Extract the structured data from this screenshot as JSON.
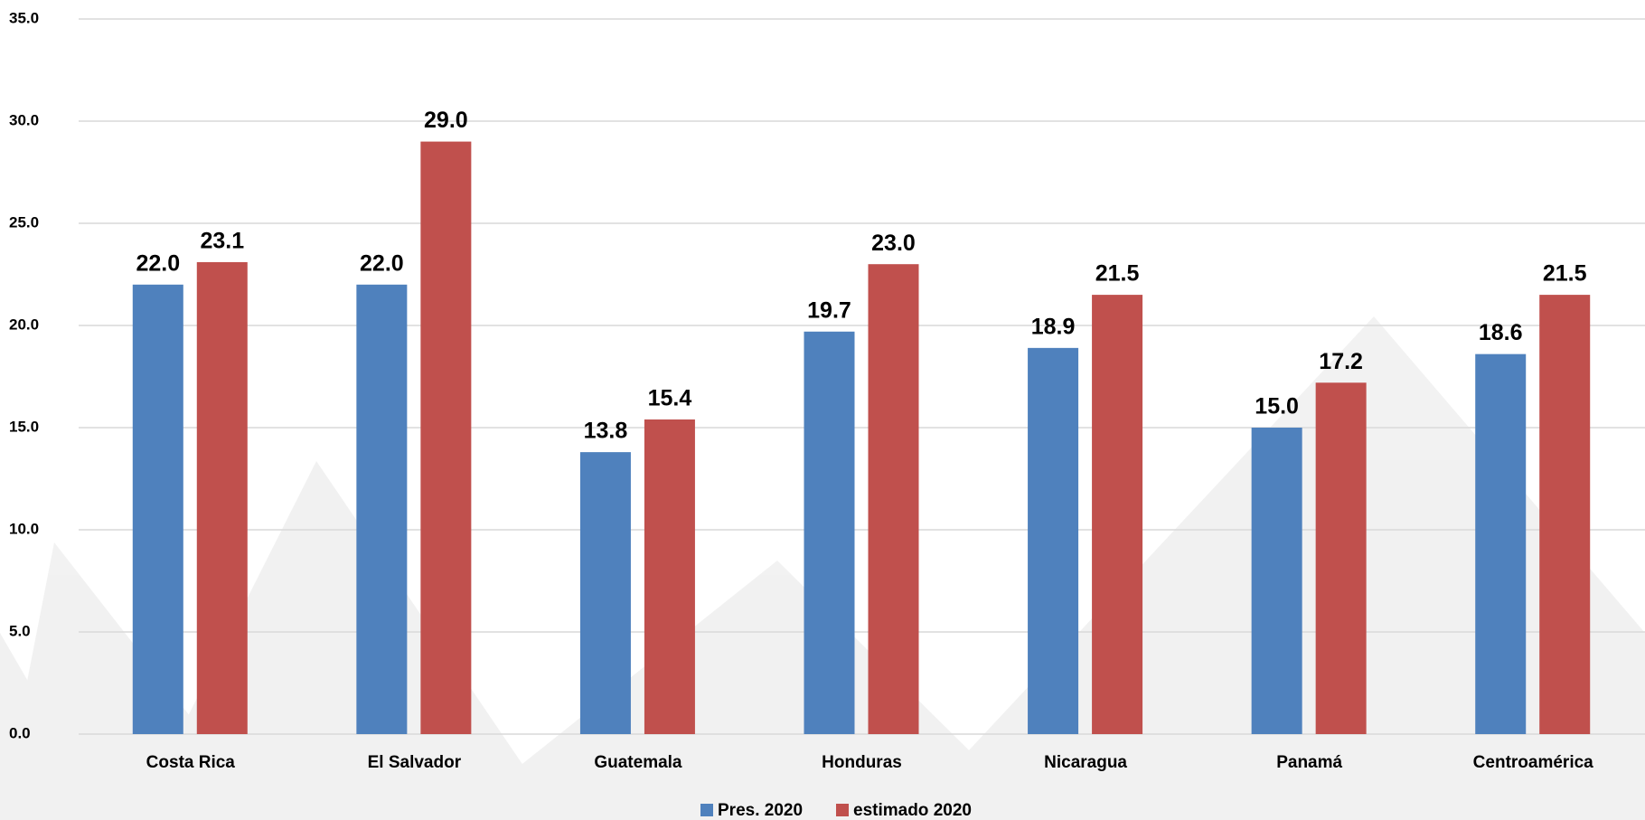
{
  "chart_data": {
    "type": "bar",
    "categories": [
      "Costa Rica",
      "El Salvador",
      "Guatemala",
      "Honduras",
      "Nicaragua",
      "Panamá",
      "Centroamérica"
    ],
    "series": [
      {
        "name": "Pres. 2020",
        "color": "#4f81bd",
        "values": [
          22.0,
          22.0,
          13.8,
          19.7,
          18.9,
          15.0,
          18.6
        ],
        "value_labels": [
          "22.0",
          "22.0",
          "13.8",
          "19.7",
          "18.9",
          "15.0",
          "18.6"
        ]
      },
      {
        "name": "estimado 2020",
        "color": "#c0504d",
        "values": [
          23.1,
          29.0,
          15.4,
          23.0,
          21.5,
          17.2,
          21.5
        ],
        "value_labels": [
          "23.1",
          "29.0",
          "15.4",
          "23.0",
          "21.5",
          "17.2",
          "21.5"
        ]
      }
    ],
    "ylim": [
      0,
      35
    ],
    "yticks": [
      {
        "value": 0,
        "label": "0.0"
      },
      {
        "value": 5,
        "label": "5.0"
      },
      {
        "value": 10,
        "label": "10.0"
      },
      {
        "value": 15,
        "label": "15.0"
      },
      {
        "value": 20,
        "label": "20.0"
      },
      {
        "value": 25,
        "label": "25.0"
      },
      {
        "value": 30,
        "label": "30.0"
      },
      {
        "value": 35,
        "label": "35.0"
      }
    ],
    "grid": true,
    "legend": "bottom"
  }
}
